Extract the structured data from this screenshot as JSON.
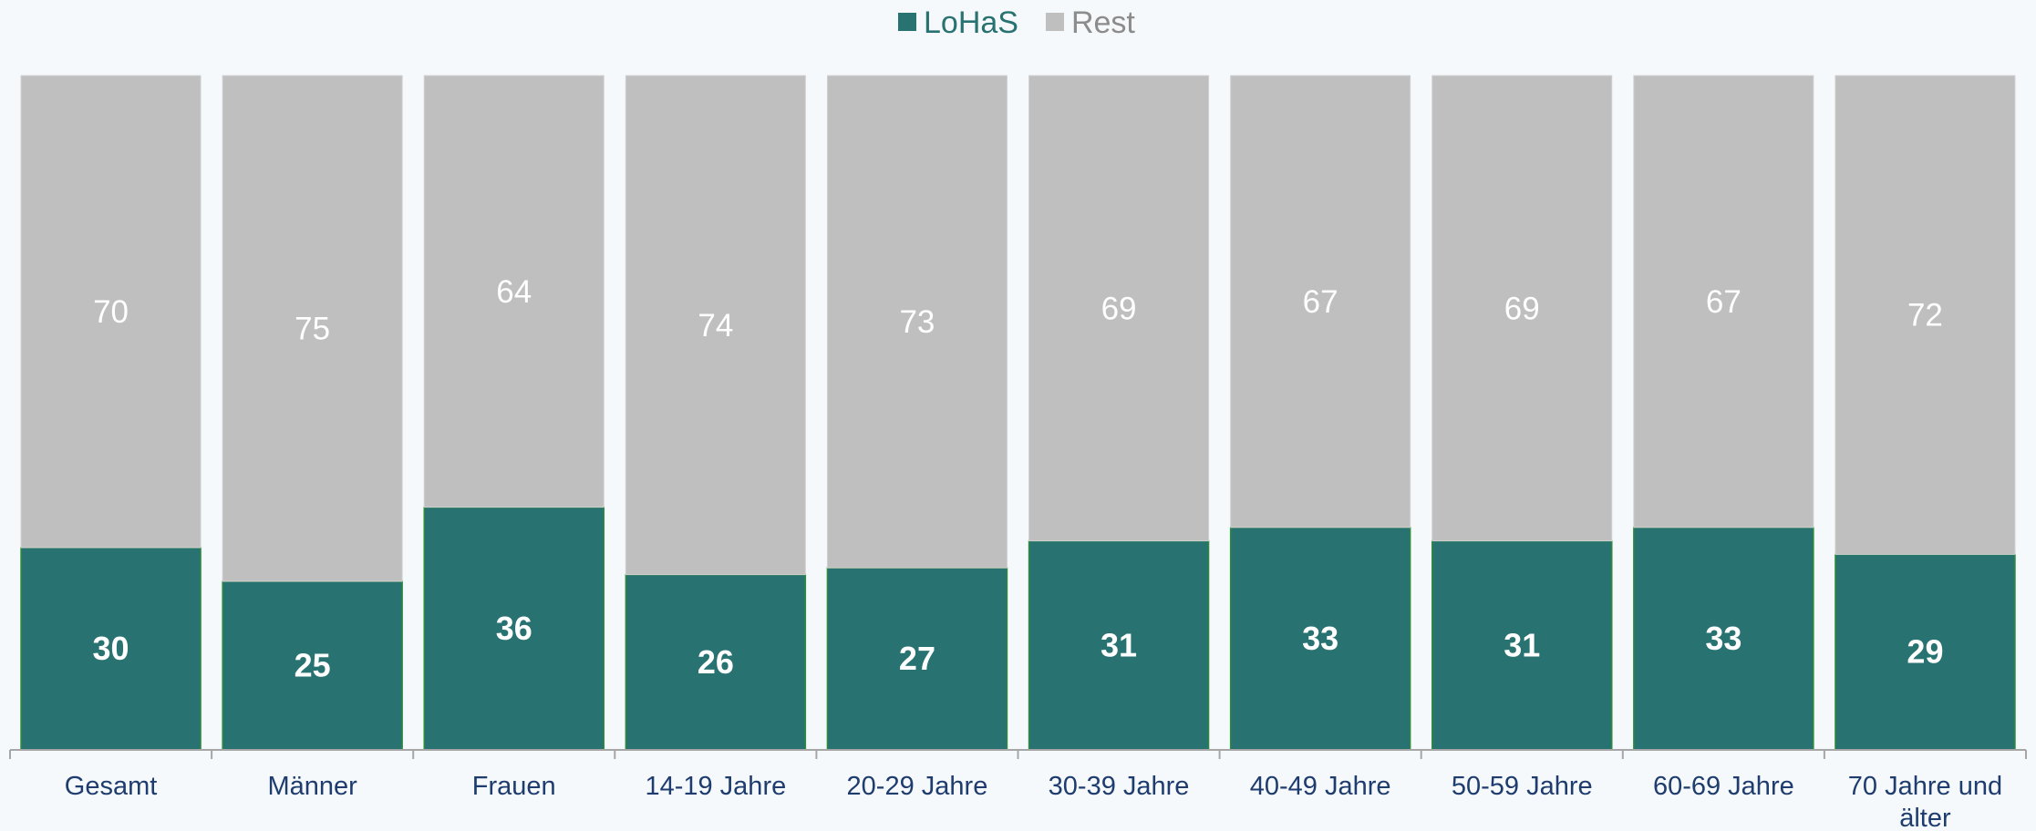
{
  "chart_data": {
    "type": "bar",
    "stacked": true,
    "percent_stacked": true,
    "categories": [
      "Gesamt",
      "Männer",
      "Frauen",
      "14-19 Jahre",
      "20-29 Jahre",
      "30-39 Jahre",
      "40-49 Jahre",
      "50-59 Jahre",
      "60-69 Jahre",
      "70 Jahre und älter"
    ],
    "series": [
      {
        "name": "LoHaS",
        "color": "#287272",
        "values": [
          30,
          25,
          36,
          26,
          27,
          31,
          33,
          31,
          33,
          29
        ]
      },
      {
        "name": "Rest",
        "color": "#bfbfbf",
        "values": [
          70,
          75,
          64,
          74,
          73,
          69,
          67,
          69,
          67,
          72
        ]
      }
    ],
    "ylim": [
      0,
      100
    ],
    "legend_position": "top-center",
    "grid": false,
    "data_labels": true
  }
}
